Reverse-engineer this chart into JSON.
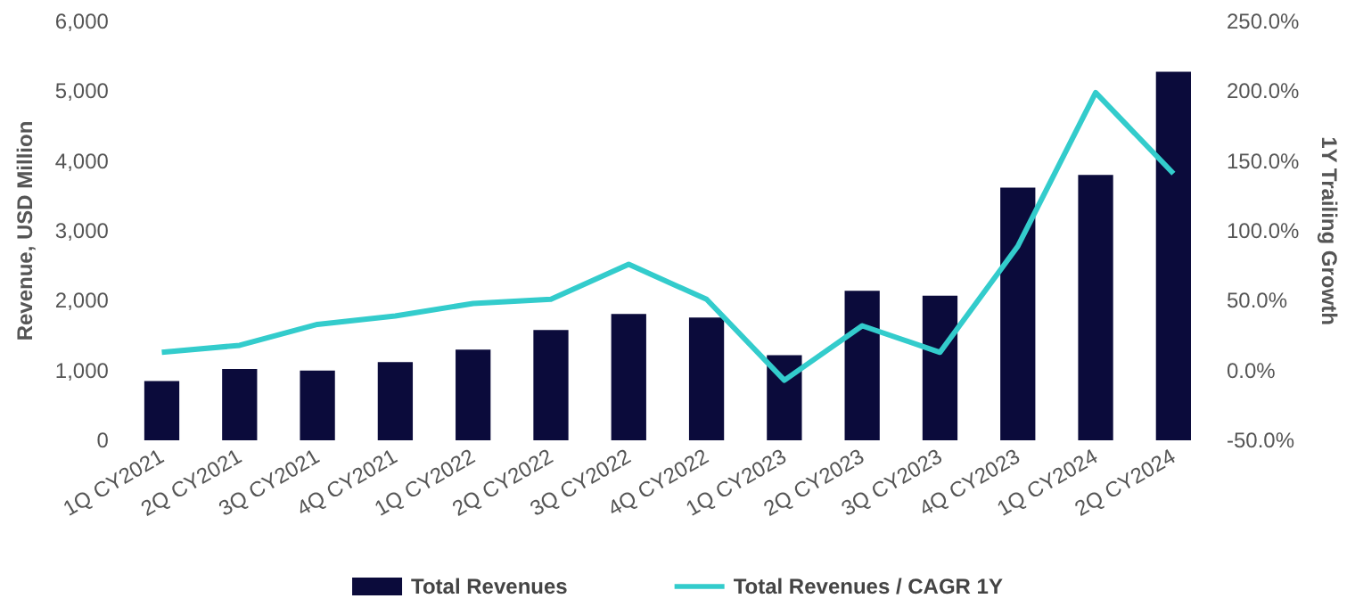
{
  "chart_data": {
    "type": "bar",
    "ylabel": "Revenue, USD Million",
    "y2label": "1Y Trailing Growth",
    "categories": [
      "1Q CY2021",
      "2Q CY2021",
      "3Q CY2021",
      "4Q CY2021",
      "1Q CY2022",
      "2Q CY2022",
      "3Q CY2022",
      "4Q CY2022",
      "1Q CY2023",
      "2Q CY2023",
      "3Q CY2023",
      "4Q CY2023",
      "1Q CY2024",
      "2Q CY2024"
    ],
    "series": [
      {
        "name": "Total Revenues",
        "color": "#0b0b3b",
        "values": [
          850,
          1020,
          1000,
          1120,
          1300,
          1580,
          1810,
          1760,
          1220,
          2140,
          2070,
          3620,
          3800,
          5280
        ]
      },
      {
        "name": "Total Revenues / CAGR 1Y",
        "type": "line",
        "axis": "y2",
        "color": "#33cccc",
        "values": [
          13,
          18,
          33,
          39,
          48,
          51,
          76,
          51,
          -7,
          32,
          13,
          89,
          199,
          141
        ]
      }
    ],
    "ylim": [
      0,
      6000
    ],
    "yticks": [
      {
        "value": 0,
        "label": "0"
      },
      {
        "value": 1000,
        "label": "1,000"
      },
      {
        "value": 2000,
        "label": "2,000"
      },
      {
        "value": 3000,
        "label": "3,000"
      },
      {
        "value": 4000,
        "label": "4,000"
      },
      {
        "value": 5000,
        "label": "5,000"
      },
      {
        "value": 6000,
        "label": "6,000"
      }
    ],
    "y2lim": [
      -50,
      250
    ],
    "y2ticks": [
      {
        "value": -50,
        "label": "-50.0%"
      },
      {
        "value": 0,
        "label": "0.0%"
      },
      {
        "value": 50,
        "label": "50.0%"
      },
      {
        "value": 100,
        "label": "100.0%"
      },
      {
        "value": 150,
        "label": "150.0%"
      },
      {
        "value": 200,
        "label": "200.0%"
      },
      {
        "value": 250,
        "label": "250.0%"
      }
    ],
    "legend": "bottom",
    "grid": false,
    "marker": "none",
    "line_style": "solid"
  }
}
